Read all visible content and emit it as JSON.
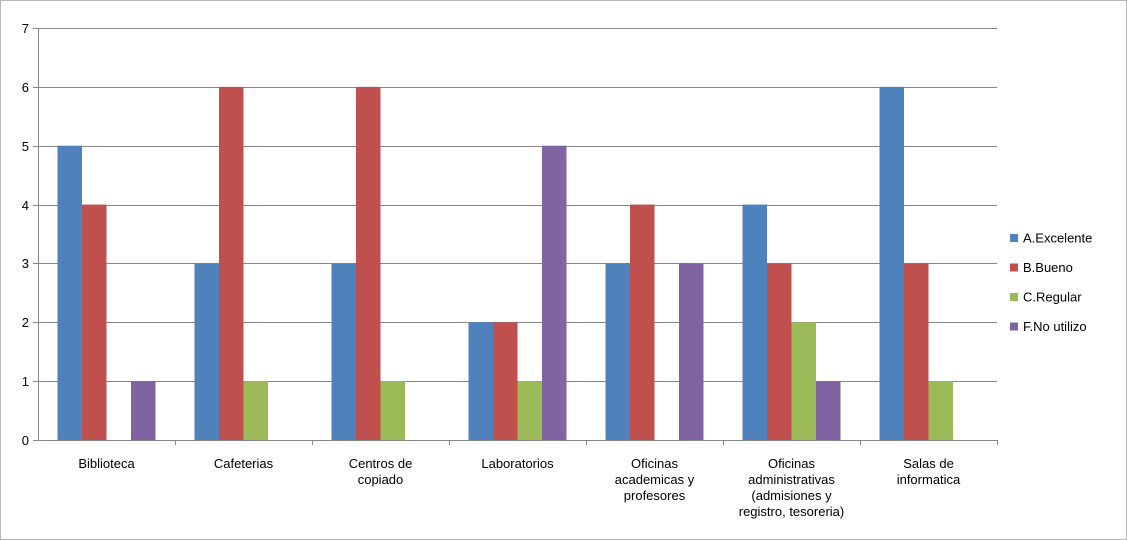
{
  "chart_data": {
    "type": "bar",
    "title": "",
    "xlabel": "",
    "ylabel": "",
    "ylim": [
      0,
      7
    ],
    "yticks": [
      0,
      1,
      2,
      3,
      4,
      5,
      6,
      7
    ],
    "grid": "horizontal",
    "legend_position": "right",
    "categories": [
      [
        "Biblioteca"
      ],
      [
        "Cafeterias"
      ],
      [
        "Centros de",
        "copiado"
      ],
      [
        "Laboratorios"
      ],
      [
        "Oficinas",
        "academicas y",
        "profesores"
      ],
      [
        "Oficinas",
        "administrativas",
        "(admisiones y",
        "registro, tesoreria)"
      ],
      [
        "Salas de",
        "informatica"
      ]
    ],
    "series": [
      {
        "name": "A.Excelente",
        "color": "#4f81bd",
        "values": [
          5,
          3,
          3,
          2,
          3,
          4,
          6
        ]
      },
      {
        "name": "B.Bueno",
        "color": "#c0504d",
        "values": [
          4,
          6,
          6,
          2,
          4,
          3,
          3
        ]
      },
      {
        "name": "C.Regular",
        "color": "#9bbb59",
        "values": [
          0,
          1,
          1,
          1,
          0,
          2,
          1
        ]
      },
      {
        "name": "F.No utilizo",
        "color": "#8064a2",
        "values": [
          1,
          0,
          0,
          5,
          3,
          1,
          0
        ]
      }
    ]
  }
}
